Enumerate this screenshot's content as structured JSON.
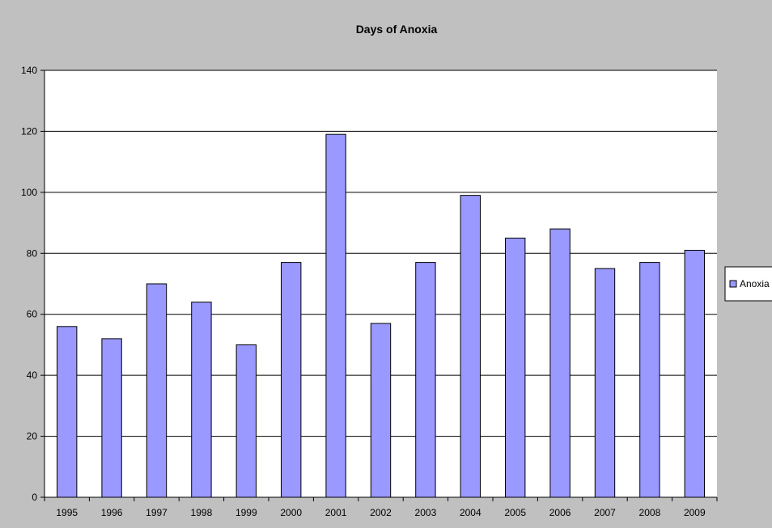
{
  "chart_data": {
    "type": "bar",
    "title": "Days of Anoxia",
    "xlabel": "",
    "ylabel": "",
    "categories": [
      "1995",
      "1996",
      "1997",
      "1998",
      "1999",
      "2000",
      "2001",
      "2002",
      "2003",
      "2004",
      "2005",
      "2006",
      "2007",
      "2008",
      "2009"
    ],
    "series": [
      {
        "name": "Anoxia",
        "values": [
          56,
          52,
          70,
          64,
          50,
          77,
          119,
          57,
          77,
          99,
          85,
          88,
          75,
          77,
          81
        ]
      }
    ],
    "ylim": [
      0,
      140
    ],
    "yticks": [
      "0",
      "20",
      "40",
      "60",
      "80",
      "100",
      "120",
      "140"
    ],
    "grid": true,
    "legend": "right",
    "colors": {
      "background": "#c0c0c0",
      "plot_area": "#ffffff",
      "bar_fill": "#9999ff",
      "bar_stroke": "#000000",
      "gridline": "#000000"
    }
  }
}
